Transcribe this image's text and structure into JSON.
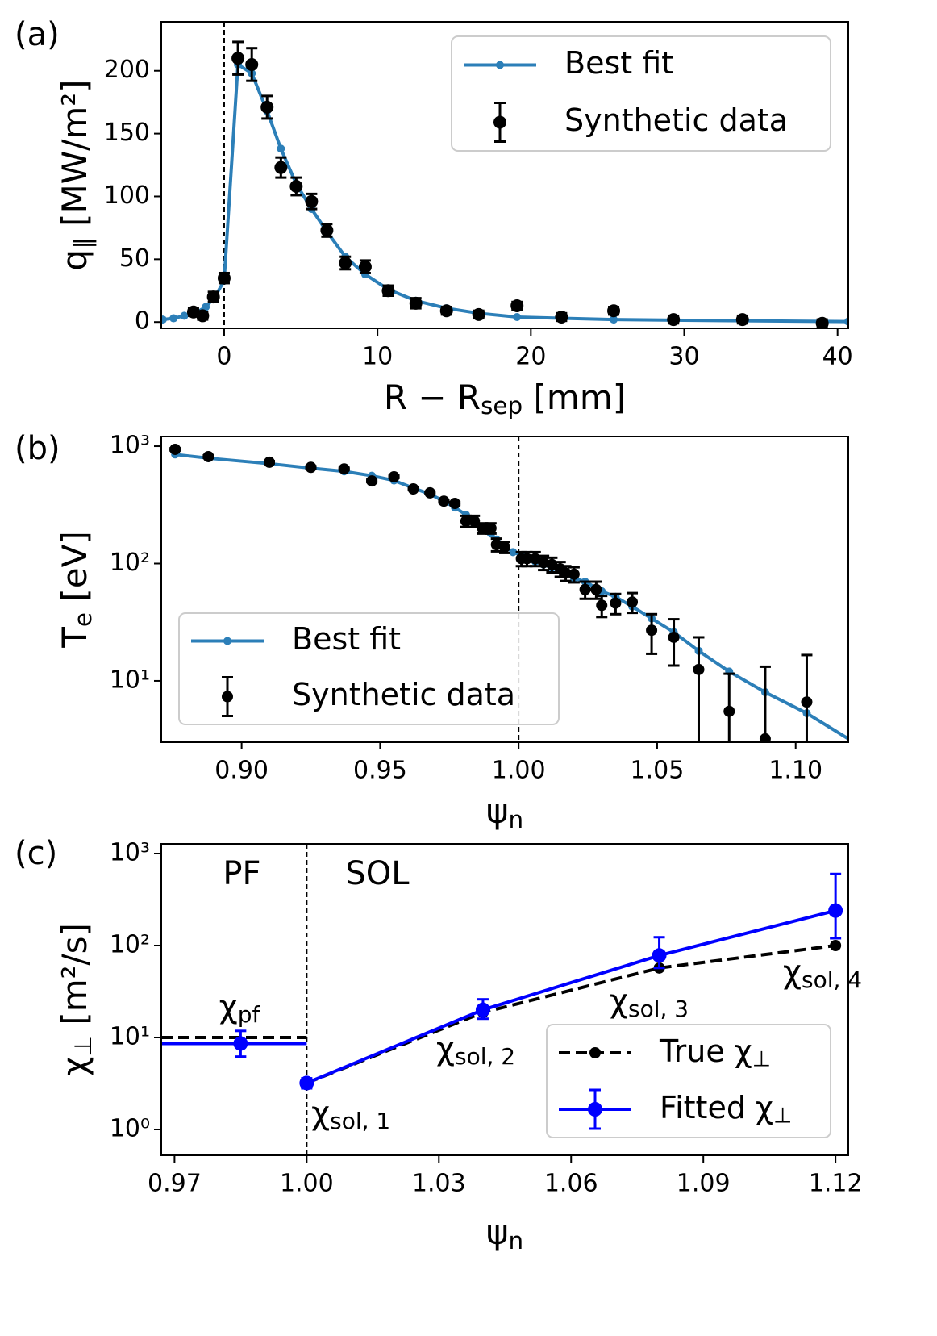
{
  "chart_data": [
    {
      "type": "line",
      "panel": "(a)",
      "xlabel": [
        "R − R",
        "sep",
        " [mm]"
      ],
      "ylabel": [
        "q",
        "∥",
        " [MW/m²]"
      ],
      "xlim": [
        -4.1,
        40.7
      ],
      "ylim": [
        -5,
        239
      ],
      "xticks": [
        0,
        10,
        20,
        30,
        40
      ],
      "yticks": [
        0,
        50,
        100,
        150,
        200
      ],
      "vline": 0,
      "legend": "upper right",
      "series": [
        {
          "name": "Best fit",
          "color": "#2c7fb8",
          "linestyle": "solid",
          "marker": "o",
          "x": [
            -4,
            -3.3,
            -2.6,
            -1.9,
            -1.2,
            -0.6,
            0,
            0.9,
            1.8,
            2.8,
            3.7,
            4.7,
            5.7,
            6.7,
            7.9,
            9.2,
            10.7,
            12.5,
            14.5,
            16.6,
            19.1,
            22,
            25.4,
            29.3,
            33.8,
            39,
            40.7
          ],
          "values": [
            2,
            3,
            5,
            7,
            12,
            20,
            33,
            205,
            198,
            168,
            138,
            110,
            90,
            72,
            52,
            38,
            26,
            17,
            11,
            7,
            4,
            3,
            2,
            1.5,
            1,
            0.5,
            0.4
          ]
        },
        {
          "name": "Synthetic data",
          "color": "#000000",
          "linestyle": "none",
          "marker": "o",
          "x": [
            -2,
            -1.4,
            -0.7,
            0,
            0.9,
            1.8,
            2.8,
            3.7,
            4.7,
            5.7,
            6.7,
            7.9,
            9.2,
            10.7,
            12.5,
            14.5,
            16.6,
            19.1,
            22,
            25.4,
            29.3,
            33.8,
            39
          ],
          "values": [
            8,
            5,
            20,
            35,
            210,
            205,
            171,
            123,
            108,
            96,
            73,
            47,
            44,
            25,
            15,
            9,
            6,
            13,
            4,
            9,
            2,
            2,
            -1
          ],
          "errors": [
            3,
            3,
            4,
            4,
            13,
            13,
            9,
            8,
            7,
            6,
            5,
            5,
            5,
            4,
            4,
            3,
            3,
            3,
            3,
            3,
            3,
            3,
            3
          ]
        }
      ]
    },
    {
      "type": "line",
      "panel": "(b)",
      "xlabel": [
        "ψ",
        "n"
      ],
      "ylabel": [
        "T",
        "e",
        " [eV]"
      ],
      "xlim": [
        0.871,
        1.119
      ],
      "ylim": [
        3,
        1210
      ],
      "yscale": "log",
      "xticks": [
        {
          "value": 0.9,
          "label": "0.90"
        },
        0.95,
        {
          "value": 1,
          "label": "1.00"
        },
        1.05,
        {
          "value": 1.1,
          "label": "1.10"
        }
      ],
      "yticks": [
        {
          "value": 10,
          "label": "10¹"
        },
        {
          "value": 100,
          "label": "10²"
        },
        {
          "value": 1000,
          "label": "10³"
        }
      ],
      "vline": 1,
      "legend": "lower left",
      "series": [
        {
          "name": "Best fit",
          "color": "#2c7fb8",
          "linestyle": "solid",
          "marker": "o",
          "x": [
            0.876,
            0.888,
            0.91,
            0.925,
            0.937,
            0.947,
            0.955,
            0.962,
            0.968,
            0.973,
            0.977,
            0.981,
            0.984,
            0.987,
            0.99,
            0.992,
            0.995,
            0.998,
            1.001,
            1.003,
            1.006,
            1.009,
            1.012,
            1.015,
            1.017,
            1.02,
            1.024,
            1.028,
            1.03,
            1.035,
            1.041,
            1.048,
            1.056,
            1.065,
            1.076,
            1.089,
            1.104,
            1.121
          ],
          "values": [
            850,
            790,
            710,
            650,
            610,
            560,
            510,
            440,
            390,
            340,
            300,
            260,
            230,
            200,
            180,
            160,
            140,
            125,
            118,
            110,
            104,
            98,
            92,
            87,
            82,
            75,
            70,
            62,
            58,
            52,
            43,
            34,
            26,
            18,
            12,
            8,
            5.3,
            3.0
          ]
        },
        {
          "name": "Synthetic data",
          "color": "#000000",
          "linestyle": "none",
          "marker": "o",
          "x": [
            0.876,
            0.888,
            0.91,
            0.925,
            0.937,
            0.947,
            0.955,
            0.962,
            0.968,
            0.973,
            0.977,
            0.981,
            0.984,
            0.987,
            0.99,
            0.992,
            0.995,
            1.001,
            1.003,
            1.006,
            1.009,
            1.012,
            1.015,
            1.017,
            1.02,
            1.024,
            1.028,
            1.03,
            1.035,
            1.041,
            1.048,
            1.056,
            1.065,
            1.076,
            1.089,
            1.104
          ],
          "values": [
            940,
            815,
            730,
            660,
            640,
            506,
            548,
            432,
            400,
            340,
            325,
            230,
            230,
            200,
            200,
            145,
            138,
            110,
            110,
            110,
            102,
            98,
            90,
            83,
            81,
            60,
            60,
            44,
            46,
            47,
            27,
            23.5,
            12.5,
            5.5,
            3.2,
            6.6
          ],
          "errors": [
            20,
            18,
            16,
            15,
            14,
            12,
            12,
            10,
            10,
            9,
            9,
            25,
            25,
            20,
            20,
            18,
            15,
            15,
            15,
            15,
            14,
            14,
            13,
            12,
            12,
            10,
            10,
            9,
            9,
            9,
            10,
            10,
            11,
            6,
            10,
            10
          ]
        }
      ]
    },
    {
      "type": "line",
      "panel": "(c)",
      "xlabel": [
        "ψ",
        "n"
      ],
      "ylabel": [
        "χ",
        "⊥",
        " [m²/s]"
      ],
      "xlim": [
        0.967,
        1.1229
      ],
      "ylim": [
        0.524,
        1274
      ],
      "yscale": "log",
      "xticks": [
        0.97,
        {
          "value": 1,
          "label": "1.00"
        },
        1.03,
        1.06,
        1.09,
        1.12
      ],
      "yticks": [
        {
          "value": 1,
          "label": "10⁰"
        },
        {
          "value": 10,
          "label": "10¹"
        },
        {
          "value": 100,
          "label": "10²"
        },
        {
          "value": 1000,
          "label": "10³"
        }
      ],
      "vline": 1,
      "legend": "lower right",
      "annotations": [
        "PF",
        "SOL",
        [
          "χ",
          "pf"
        ],
        [
          "χ",
          "sol, 1"
        ],
        [
          "χ",
          "sol, 2"
        ],
        [
          "χ",
          "sol, 3"
        ],
        [
          "χ",
          "sol, 4"
        ]
      ],
      "series": [
        {
          "name": [
            "True χ",
            "⊥"
          ],
          "color": "#000000",
          "linestyle": "dashed",
          "marker": "o",
          "x": [
            1,
            1.04,
            1.08,
            1.12
          ],
          "values": [
            3.2,
            18.7,
            57,
            100
          ],
          "pf": {
            "value": 10
          }
        },
        {
          "name": [
            "Fitted χ",
            "⊥"
          ],
          "color": "#0000ff",
          "linestyle": "solid",
          "marker": "o",
          "x": [
            1,
            1.04,
            1.08,
            1.12
          ],
          "values": [
            3.2,
            20,
            78,
            240
          ],
          "errors_low": [
            0.4,
            4,
            21,
            120
          ],
          "errors_high": [
            0.4,
            6,
            45,
            360
          ],
          "pf": {
            "x": 0.985,
            "value": 8.6,
            "error_low": 2.4,
            "error_high": 3.2
          }
        }
      ]
    }
  ]
}
